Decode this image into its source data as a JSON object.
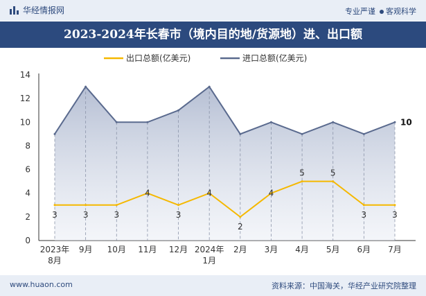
{
  "header": {
    "brand": "华经情报网",
    "slogan_left": "专业严谨",
    "slogan_right": "客观科学"
  },
  "title": "2023-2024年长春市（境内目的地/货源地）进、出口额",
  "footer": {
    "url": "www.huaon.com",
    "source": "资料来源：中国海关，华经产业研究院整理"
  },
  "colors": {
    "export": "#f5b800",
    "import": "#5a6a8e",
    "title_bg": "#2c4a7e",
    "band_bg": "#e9eef6"
  },
  "chart_data": {
    "type": "line",
    "title": "2023-2024年长春市（境内目的地/货源地）进、出口额",
    "categories": [
      "2023年\n8月",
      "9月",
      "10月",
      "11月",
      "12月",
      "2024年\n1月",
      "2月",
      "3月",
      "4月",
      "5月",
      "6月",
      "7月"
    ],
    "ylim": [
      0,
      14
    ],
    "yticks": [
      0,
      2,
      4,
      6,
      8,
      10,
      12,
      14
    ],
    "series": [
      {
        "name": "出口总额(亿美元)",
        "values": [
          3,
          3,
          3,
          4,
          3,
          4,
          2,
          4,
          5,
          5,
          3,
          3
        ],
        "labels": [
          "3",
          "3",
          "3",
          "4",
          "3",
          "4",
          "2",
          "4",
          "5",
          "5",
          "3",
          "3"
        ]
      },
      {
        "name": "进口总额(亿美元)",
        "values": [
          9,
          13,
          10,
          10,
          11,
          13,
          9,
          10,
          9,
          10,
          9,
          10
        ],
        "labels": [
          "",
          "",
          "",
          "",
          "",
          "",
          "",
          "",
          "",
          "",
          "",
          "10"
        ]
      }
    ],
    "legend_position": "top-center"
  }
}
